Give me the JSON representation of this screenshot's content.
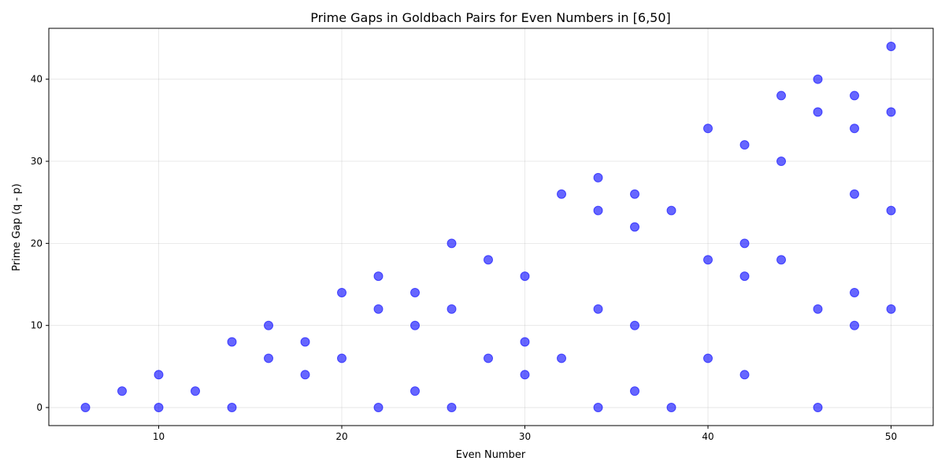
{
  "chart_data": {
    "type": "scatter",
    "title": "Prime Gaps in Goldbach Pairs for Even Numbers in [6,50]",
    "xlabel": "Even Number",
    "ylabel": "Prime Gap (q - p)",
    "xlim": [
      4,
      52.3
    ],
    "ylim": [
      -2.2,
      46.2
    ],
    "xticks": [
      10,
      20,
      30,
      40,
      50
    ],
    "yticks": [
      0,
      10,
      20,
      30,
      40
    ],
    "grid": true,
    "color": "#0000ff",
    "points": [
      [
        6,
        0
      ],
      [
        8,
        2
      ],
      [
        10,
        0
      ],
      [
        10,
        4
      ],
      [
        12,
        2
      ],
      [
        14,
        0
      ],
      [
        14,
        8
      ],
      [
        16,
        6
      ],
      [
        16,
        10
      ],
      [
        18,
        4
      ],
      [
        18,
        8
      ],
      [
        20,
        6
      ],
      [
        20,
        14
      ],
      [
        22,
        0
      ],
      [
        22,
        12
      ],
      [
        22,
        16
      ],
      [
        24,
        2
      ],
      [
        24,
        10
      ],
      [
        24,
        14
      ],
      [
        26,
        0
      ],
      [
        26,
        12
      ],
      [
        26,
        20
      ],
      [
        28,
        6
      ],
      [
        28,
        18
      ],
      [
        30,
        4
      ],
      [
        30,
        8
      ],
      [
        30,
        16
      ],
      [
        32,
        6
      ],
      [
        32,
        26
      ],
      [
        34,
        0
      ],
      [
        34,
        12
      ],
      [
        34,
        24
      ],
      [
        34,
        28
      ],
      [
        36,
        2
      ],
      [
        36,
        10
      ],
      [
        36,
        22
      ],
      [
        36,
        26
      ],
      [
        38,
        0
      ],
      [
        38,
        24
      ],
      [
        40,
        6
      ],
      [
        40,
        18
      ],
      [
        40,
        34
      ],
      [
        42,
        4
      ],
      [
        42,
        16
      ],
      [
        42,
        20
      ],
      [
        42,
        32
      ],
      [
        44,
        18
      ],
      [
        44,
        30
      ],
      [
        44,
        38
      ],
      [
        46,
        0
      ],
      [
        46,
        12
      ],
      [
        46,
        36
      ],
      [
        46,
        40
      ],
      [
        48,
        10
      ],
      [
        48,
        14
      ],
      [
        48,
        26
      ],
      [
        48,
        34
      ],
      [
        48,
        38
      ],
      [
        50,
        12
      ],
      [
        50,
        24
      ],
      [
        50,
        36
      ],
      [
        50,
        44
      ]
    ]
  }
}
